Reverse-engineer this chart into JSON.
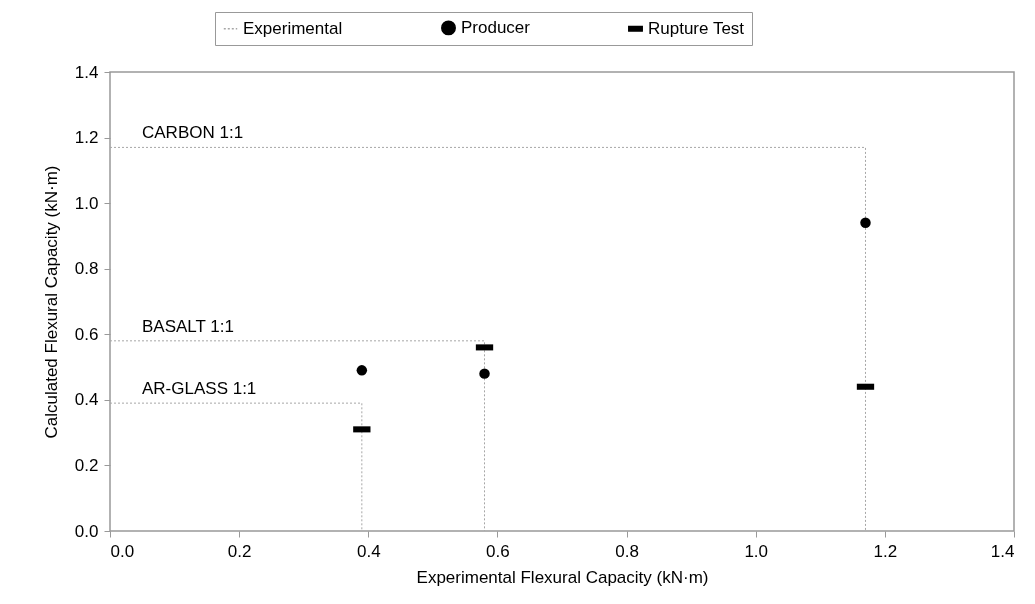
{
  "chart_data": {
    "type": "scatter",
    "xlabel": "Experimental Flexural Capacity (kN·m)",
    "ylabel": "Calculated Flexural Capacity (kN·m)",
    "x": [
      0.39,
      0.58,
      1.17
    ],
    "series": [
      {
        "name": "Experimental",
        "type": "line",
        "color": "#a6a6a6",
        "line_style": "dotted",
        "x": [
          0,
          0.39,
          0.39,
          null,
          0,
          0.58,
          0.58,
          null,
          0,
          1.17,
          1.17
        ],
        "values": [
          0.39,
          0.39,
          0,
          null,
          0.58,
          0.58,
          0,
          null,
          1.17,
          1.17,
          0
        ]
      },
      {
        "name": "Producer",
        "color": "#000000",
        "marker": "circle",
        "values": [
          0.49,
          0.48,
          0.94
        ]
      },
      {
        "name": "Rupture Test",
        "color": "#000000",
        "values": [
          0.31,
          0.56,
          0.44
        ]
      }
    ],
    "annotations": [
      {
        "text": "AR-GLASS 1:1",
        "y": 0.39
      },
      {
        "text": "BASALT 1:1",
        "y": 0.58
      },
      {
        "text": "CARBON 1:1",
        "y": 1.17
      }
    ],
    "xlim": [
      0,
      1.4
    ],
    "ylim": [
      0,
      1.4
    ],
    "xticks": [
      {
        "value": 0,
        "label": "0.0"
      },
      {
        "value": 0.2,
        "label": "0.2"
      },
      {
        "value": 0.4,
        "label": "0.4"
      },
      {
        "value": 0.6,
        "label": "0.6"
      },
      {
        "value": 0.8,
        "label": "0.8"
      },
      {
        "value": 1,
        "label": "1.0"
      },
      {
        "value": 1.2,
        "label": "1.2"
      },
      {
        "value": 1.4,
        "label": "1.4"
      }
    ],
    "yticks": [
      {
        "value": 0,
        "label": "0.0"
      },
      {
        "value": 0.2,
        "label": "0.2"
      },
      {
        "value": 0.4,
        "label": "0.4"
      },
      {
        "value": 0.6,
        "label": "0.6"
      },
      {
        "value": 0.8,
        "label": "0.8"
      },
      {
        "value": 1,
        "label": "1.0"
      },
      {
        "value": 1.2,
        "label": "1.2"
      },
      {
        "value": 1.4,
        "label": "1.4"
      }
    ],
    "legend": "top",
    "grid": false
  }
}
